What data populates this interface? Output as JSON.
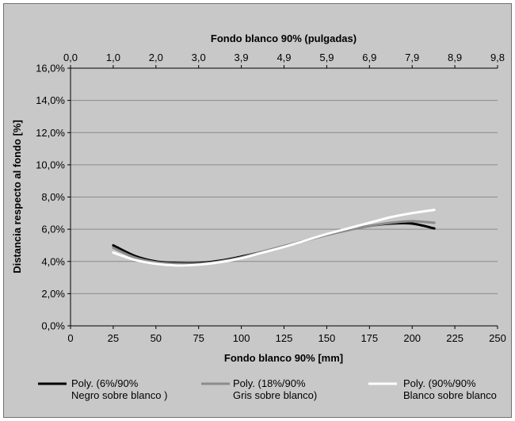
{
  "chart_data": {
    "type": "line",
    "title": "",
    "x_top_label": "Fondo blanco 90% (pulgadas)",
    "x_top_ticks": [
      "0,0",
      "1,0",
      "2,0",
      "3,0",
      "3,9",
      "4,9",
      "5,9",
      "6,9",
      "7,9",
      "8,9",
      "9,8"
    ],
    "xlabel": "Fondo blanco 90% [mm]",
    "ylabel": "Distancia respecto al fondo [%]",
    "xlim": [
      0,
      250
    ],
    "ylim": [
      0,
      16
    ],
    "x_ticks": [
      0,
      25,
      50,
      75,
      100,
      125,
      150,
      175,
      200,
      225,
      250
    ],
    "y_ticks": [
      0,
      2,
      4,
      6,
      8,
      10,
      12,
      14,
      16
    ],
    "y_tick_labels": [
      "0,0%",
      "2,0%",
      "4,0%",
      "6,0%",
      "8,0%",
      "10,0%",
      "12,0%",
      "14,0%",
      "16,0%"
    ],
    "grid": "horizontal",
    "legend_position": "bottom",
    "x": [
      25,
      37.5,
      50,
      62.5,
      75,
      87.5,
      100,
      112.5,
      125,
      137.5,
      150,
      162.5,
      175,
      187.5,
      200,
      213
    ],
    "series": [
      {
        "name_line1": "Poly. (6%/90%",
        "name_line2": "Negro sobre blanco )",
        "color": "#000000",
        "values": [
          5.0,
          4.35,
          4.0,
          3.9,
          3.9,
          4.05,
          4.3,
          4.6,
          4.95,
          5.3,
          5.65,
          5.95,
          6.2,
          6.35,
          6.35,
          6.05
        ]
      },
      {
        "name_line1": "Poly. (18%/90%",
        "name_line2": "Gris sobre blanco)",
        "color": "#8c8c8c",
        "values": [
          4.85,
          4.25,
          3.95,
          3.85,
          3.85,
          4.0,
          4.25,
          4.6,
          4.95,
          5.3,
          5.65,
          5.95,
          6.2,
          6.4,
          6.5,
          6.4
        ]
      },
      {
        "name_line1": "Poly. (90%/90%",
        "name_line2": "Blanco sobre blanco",
        "color": "#ffffff",
        "values": [
          4.55,
          4.1,
          3.85,
          3.75,
          3.8,
          3.95,
          4.2,
          4.55,
          4.9,
          5.3,
          5.7,
          6.05,
          6.4,
          6.75,
          7.0,
          7.2
        ]
      }
    ]
  }
}
